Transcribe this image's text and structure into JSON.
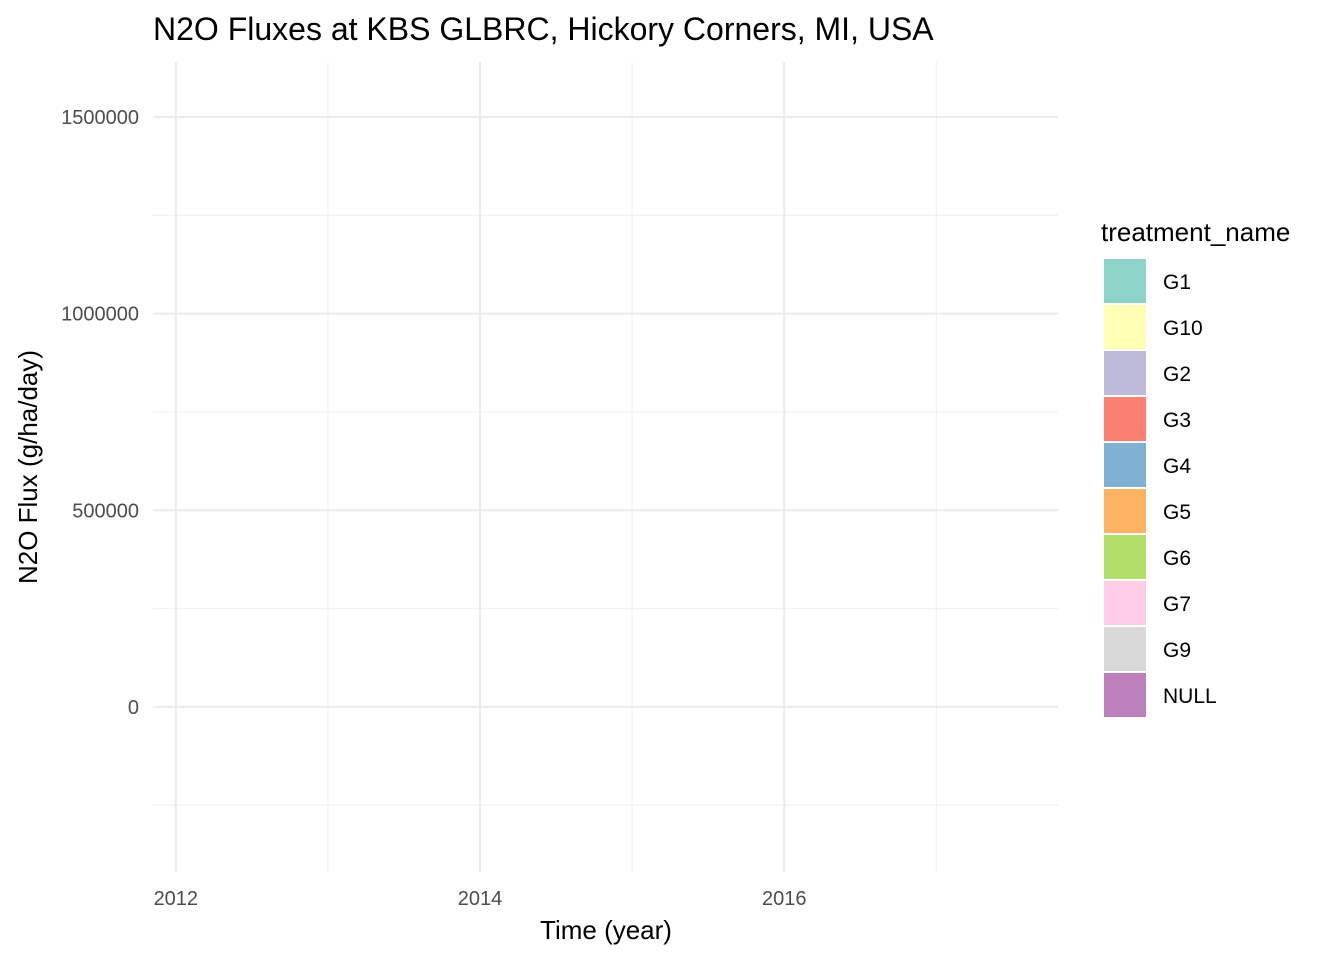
{
  "chart_data": {
    "type": "area",
    "title": "N2O Fluxes at KBS GLBRC, Hickory Corners, MI, USA",
    "xlabel": "Time (year)",
    "ylabel": "N2O Flux (g/ha/day)",
    "xlim": [
      2011.85,
      2017.8
    ],
    "ylim": [
      -420000,
      1640000
    ],
    "x_ticks": [
      2012,
      2014,
      2016
    ],
    "x_tick_labels": [
      "2012",
      "2014",
      "2016"
    ],
    "x_minor_ticks": [
      2013,
      2015,
      2017
    ],
    "y_ticks": [
      0,
      500000,
      1000000,
      1500000
    ],
    "y_tick_labels": [
      "0",
      "500000",
      "1000000",
      "1500000"
    ],
    "y_minor_ticks": [
      -250000,
      250000,
      750000,
      1250000
    ],
    "grid": true,
    "legend": {
      "title": "treatment_name",
      "placement": "right",
      "entries": [
        {
          "label": "G1",
          "color": "#8dd3c7"
        },
        {
          "label": "G10",
          "color": "#ffffb3"
        },
        {
          "label": "G2",
          "color": "#bebada"
        },
        {
          "label": "G3",
          "color": "#fb8072"
        },
        {
          "label": "G4",
          "color": "#80b1d3"
        },
        {
          "label": "G5",
          "color": "#fdb462"
        },
        {
          "label": "G6",
          "color": "#b3de69"
        },
        {
          "label": "G7",
          "color": "#fccde5"
        },
        {
          "label": "G9",
          "color": "#d9d9d9"
        },
        {
          "label": "NULL",
          "color": "#bc80bd"
        }
      ]
    },
    "series": []
  }
}
